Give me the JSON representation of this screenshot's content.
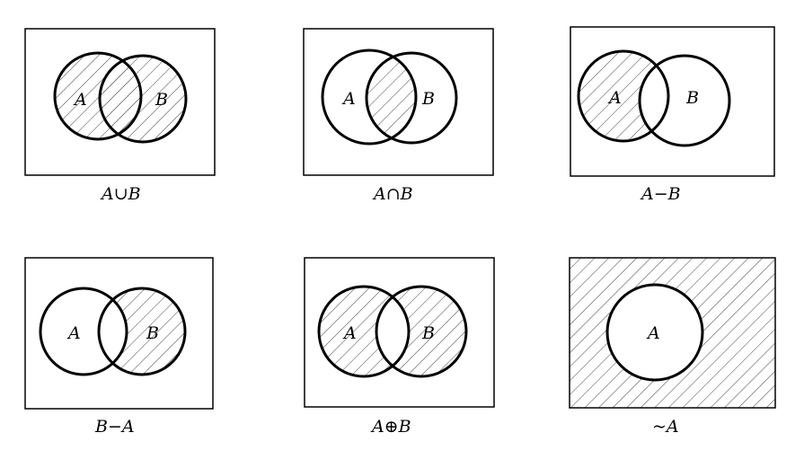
{
  "diagrams": [
    {
      "caption": "A∪B",
      "set_a": "A",
      "set_b": "B",
      "shaded_region": "union"
    },
    {
      "caption": "A∩B",
      "set_a": "A",
      "set_b": "B",
      "shaded_region": "intersection"
    },
    {
      "caption": "A−B",
      "set_a": "A",
      "set_b": "B",
      "shaded_region": "a-minus-b"
    },
    {
      "caption": "B−A",
      "set_a": "A",
      "set_b": "B",
      "shaded_region": "b-minus-a"
    },
    {
      "caption": "A⊕B",
      "set_a": "A",
      "set_b": "B",
      "shaded_region": "symmetric-difference"
    },
    {
      "caption": "~A",
      "set_a": "A",
      "shaded_region": "complement-of-a"
    }
  ]
}
